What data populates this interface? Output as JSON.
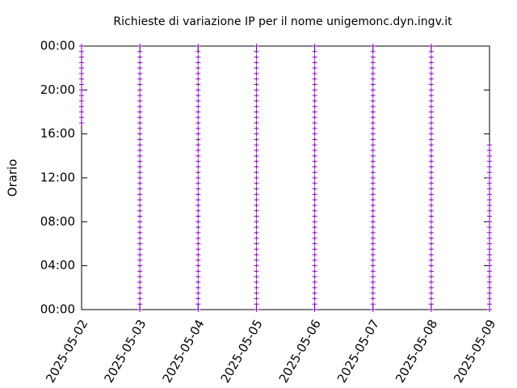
{
  "chart_data": {
    "type": "scatter",
    "title": "Richieste di variazione IP per il nome unigemonc.dyn.ingv.it",
    "y_label": "Orario",
    "color": "#9400d3",
    "xlim": [
      "2025-05-02",
      "2025-05-09"
    ],
    "xticks": [
      "2025-05-02",
      "2025-05-03",
      "2025-05-04",
      "2025-05-05",
      "2025-05-06",
      "2025-05-07",
      "2025-05-08",
      "2025-05-09"
    ],
    "ylim": [
      0,
      24
    ],
    "yticks": [
      {
        "value": 0,
        "label": "00:00"
      },
      {
        "value": 4,
        "label": "04:00"
      },
      {
        "value": 8,
        "label": "08:00"
      },
      {
        "value": 12,
        "label": "12:00"
      },
      {
        "value": 16,
        "label": "16:00"
      },
      {
        "value": 20,
        "label": "20:00"
      },
      {
        "value": 24,
        "label": "00:00"
      }
    ],
    "series": [
      {
        "x": "2025-05-02",
        "values": [
          17,
          17.5,
          18,
          18.5,
          19,
          19.5,
          20,
          20.5,
          21,
          21.5,
          22,
          22.5,
          23,
          23.5,
          24
        ]
      },
      {
        "x": "2025-05-03",
        "values": [
          0,
          0.5,
          1,
          1.5,
          2,
          2.5,
          3,
          3.5,
          4,
          4.5,
          5,
          5.5,
          6,
          6.5,
          7,
          7.5,
          8,
          8.5,
          9,
          9.5,
          10,
          10.5,
          11,
          11.5,
          12,
          12.5,
          13,
          13.5,
          14,
          14.5,
          15,
          15.5,
          16,
          16.5,
          17,
          17.5,
          18,
          18.5,
          19,
          19.5,
          20,
          20.5,
          21,
          21.5,
          22,
          22.5,
          23,
          23.5,
          24
        ]
      },
      {
        "x": "2025-05-04",
        "values": [
          0,
          0.5,
          1,
          1.5,
          2,
          2.5,
          3,
          3.5,
          4,
          4.5,
          5,
          5.5,
          6,
          6.5,
          7,
          7.5,
          8,
          8.5,
          9,
          9.5,
          10,
          10.5,
          11,
          11.5,
          12,
          12.5,
          13,
          13.5,
          14,
          14.5,
          15,
          15.5,
          16,
          16.5,
          17,
          17.5,
          18,
          18.5,
          19,
          19.5,
          20,
          20.5,
          21,
          21.5,
          22,
          22.5,
          23,
          23.5,
          24
        ]
      },
      {
        "x": "2025-05-05",
        "values": [
          0,
          0.5,
          1,
          1.5,
          2,
          2.5,
          3,
          3.5,
          4,
          4.5,
          5,
          5.5,
          6,
          6.5,
          7,
          7.5,
          8,
          8.5,
          9,
          9.5,
          10,
          10.5,
          11,
          11.5,
          12,
          12.5,
          13,
          13.5,
          14,
          14.5,
          15,
          15.5,
          16,
          16.5,
          17,
          17.5,
          18,
          18.5,
          19,
          19.5,
          20,
          20.5,
          21,
          21.5,
          22,
          22.5,
          23,
          23.5,
          24
        ]
      },
      {
        "x": "2025-05-06",
        "values": [
          0,
          0.5,
          1,
          1.5,
          2,
          2.5,
          3,
          3.5,
          4,
          4.5,
          5,
          5.5,
          6,
          6.5,
          7,
          7.5,
          8,
          8.5,
          9,
          9.5,
          10,
          10.5,
          11,
          11.5,
          12,
          12.5,
          13,
          13.5,
          14,
          14.5,
          15,
          15.5,
          16,
          16.5,
          17,
          17.5,
          18,
          18.5,
          19,
          19.5,
          20,
          20.5,
          21,
          21.5,
          22,
          22.5,
          23,
          23.5,
          24
        ]
      },
      {
        "x": "2025-05-07",
        "values": [
          0,
          0.5,
          1,
          1.5,
          2,
          2.5,
          3,
          3.5,
          4,
          4.5,
          5,
          5.5,
          6,
          6.5,
          7,
          7.5,
          8,
          8.5,
          9,
          9.5,
          10,
          10.5,
          11,
          11.5,
          12,
          12.5,
          13,
          13.5,
          14,
          14.5,
          15,
          15.5,
          16,
          16.5,
          17,
          17.5,
          18,
          18.5,
          19,
          19.5,
          20,
          20.5,
          21,
          21.5,
          22,
          22.5,
          23,
          23.5,
          24
        ]
      },
      {
        "x": "2025-05-08",
        "values": [
          0,
          0.5,
          1,
          1.5,
          2,
          2.5,
          3,
          3.5,
          4,
          4.5,
          5,
          5.5,
          6,
          6.5,
          7,
          7.5,
          8,
          8.5,
          9,
          9.5,
          10,
          10.5,
          11,
          11.5,
          12,
          12.5,
          13,
          13.5,
          14,
          14.5,
          15,
          15.5,
          16,
          16.5,
          17,
          17.5,
          18,
          18.5,
          19,
          19.5,
          20,
          20.5,
          21,
          21.5,
          22,
          22.5,
          23,
          23.5,
          24
        ]
      },
      {
        "x": "2025-05-09",
        "values": [
          0,
          0.5,
          1,
          1.5,
          2,
          2.5,
          3,
          3.5,
          4,
          4.5,
          5,
          5.5,
          6,
          6.5,
          7,
          7.5,
          8,
          8.5,
          9,
          9.5,
          10,
          10.5,
          11,
          11.5,
          12,
          12.5,
          13,
          13.5,
          14,
          14.5,
          15
        ]
      }
    ]
  }
}
